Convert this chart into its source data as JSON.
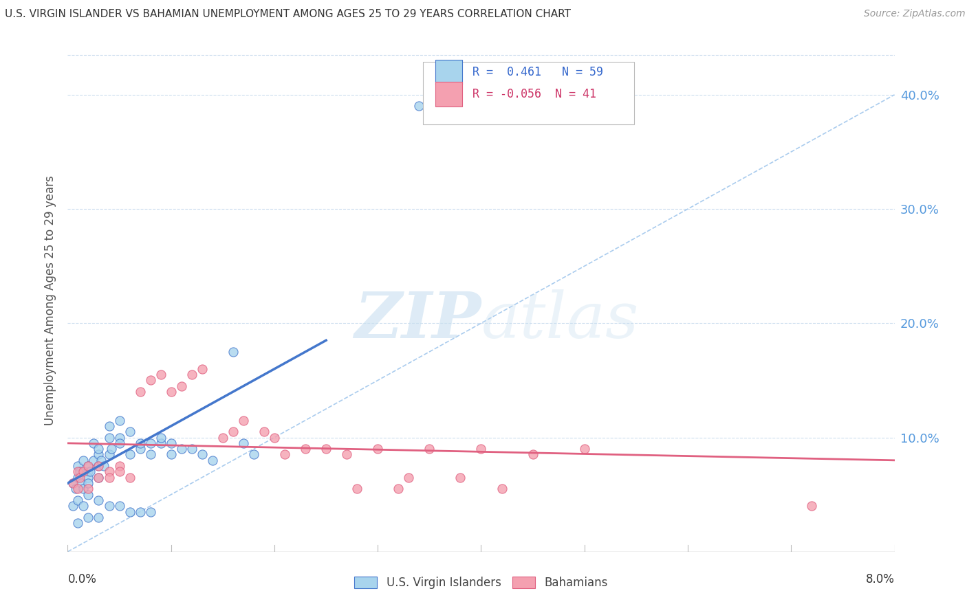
{
  "title": "U.S. VIRGIN ISLANDER VS BAHAMIAN UNEMPLOYMENT AMONG AGES 25 TO 29 YEARS CORRELATION CHART",
  "source": "Source: ZipAtlas.com",
  "ylabel": "Unemployment Among Ages 25 to 29 years",
  "yaxis_ticks": [
    0.0,
    0.1,
    0.2,
    0.3,
    0.4
  ],
  "yaxis_labels": [
    "",
    "10.0%",
    "20.0%",
    "30.0%",
    "40.0%"
  ],
  "xmin": 0.0,
  "xmax": 0.08,
  "ymin": 0.0,
  "ymax": 0.44,
  "watermark_zip": "ZIP",
  "watermark_atlas": "atlas",
  "legend1_label": "U.S. Virgin Islanders",
  "legend2_label": "Bahamians",
  "R1": 0.461,
  "N1": 59,
  "R2": -0.056,
  "N2": 41,
  "color_vi": "#A8D4ED",
  "color_vi_line": "#4477CC",
  "color_bah": "#F4A0B0",
  "color_bah_line": "#E06080",
  "vi_scatter_x": [
    0.0005,
    0.0008,
    0.001,
    0.001,
    0.0012,
    0.0013,
    0.0015,
    0.0015,
    0.002,
    0.002,
    0.002,
    0.002,
    0.0022,
    0.0025,
    0.0025,
    0.003,
    0.003,
    0.003,
    0.003,
    0.0032,
    0.0035,
    0.004,
    0.004,
    0.004,
    0.0042,
    0.005,
    0.005,
    0.005,
    0.006,
    0.006,
    0.007,
    0.007,
    0.008,
    0.008,
    0.009,
    0.009,
    0.01,
    0.01,
    0.011,
    0.012,
    0.013,
    0.014,
    0.016,
    0.017,
    0.018,
    0.0005,
    0.001,
    0.0015,
    0.002,
    0.003,
    0.004,
    0.005,
    0.001,
    0.002,
    0.003,
    0.006,
    0.007,
    0.008,
    0.034
  ],
  "vi_scatter_y": [
    0.06,
    0.055,
    0.065,
    0.075,
    0.07,
    0.06,
    0.055,
    0.08,
    0.07,
    0.065,
    0.06,
    0.075,
    0.07,
    0.08,
    0.095,
    0.065,
    0.085,
    0.075,
    0.09,
    0.08,
    0.075,
    0.085,
    0.1,
    0.11,
    0.09,
    0.1,
    0.115,
    0.095,
    0.105,
    0.085,
    0.09,
    0.095,
    0.085,
    0.095,
    0.095,
    0.1,
    0.095,
    0.085,
    0.09,
    0.09,
    0.085,
    0.08,
    0.175,
    0.095,
    0.085,
    0.04,
    0.045,
    0.04,
    0.05,
    0.045,
    0.04,
    0.04,
    0.025,
    0.03,
    0.03,
    0.035,
    0.035,
    0.035,
    0.39
  ],
  "bah_scatter_x": [
    0.0005,
    0.001,
    0.001,
    0.0012,
    0.0015,
    0.002,
    0.002,
    0.003,
    0.003,
    0.004,
    0.004,
    0.005,
    0.005,
    0.006,
    0.007,
    0.008,
    0.009,
    0.01,
    0.011,
    0.012,
    0.013,
    0.015,
    0.016,
    0.017,
    0.019,
    0.02,
    0.021,
    0.023,
    0.025,
    0.027,
    0.03,
    0.033,
    0.035,
    0.038,
    0.04,
    0.045,
    0.05,
    0.028,
    0.032,
    0.042,
    0.072
  ],
  "bah_scatter_y": [
    0.06,
    0.055,
    0.07,
    0.065,
    0.07,
    0.055,
    0.075,
    0.065,
    0.075,
    0.07,
    0.065,
    0.075,
    0.07,
    0.065,
    0.14,
    0.15,
    0.155,
    0.14,
    0.145,
    0.155,
    0.16,
    0.1,
    0.105,
    0.115,
    0.105,
    0.1,
    0.085,
    0.09,
    0.09,
    0.085,
    0.09,
    0.065,
    0.09,
    0.065,
    0.09,
    0.085,
    0.09,
    0.055,
    0.055,
    0.055,
    0.04
  ],
  "vi_line_x": [
    0.0,
    0.025
  ],
  "vi_line_y": [
    0.06,
    0.185
  ],
  "bah_line_x": [
    0.0,
    0.08
  ],
  "bah_line_y": [
    0.095,
    0.08
  ],
  "diag_line_x": [
    0.0,
    0.08
  ],
  "diag_line_y": [
    0.0,
    0.4
  ]
}
